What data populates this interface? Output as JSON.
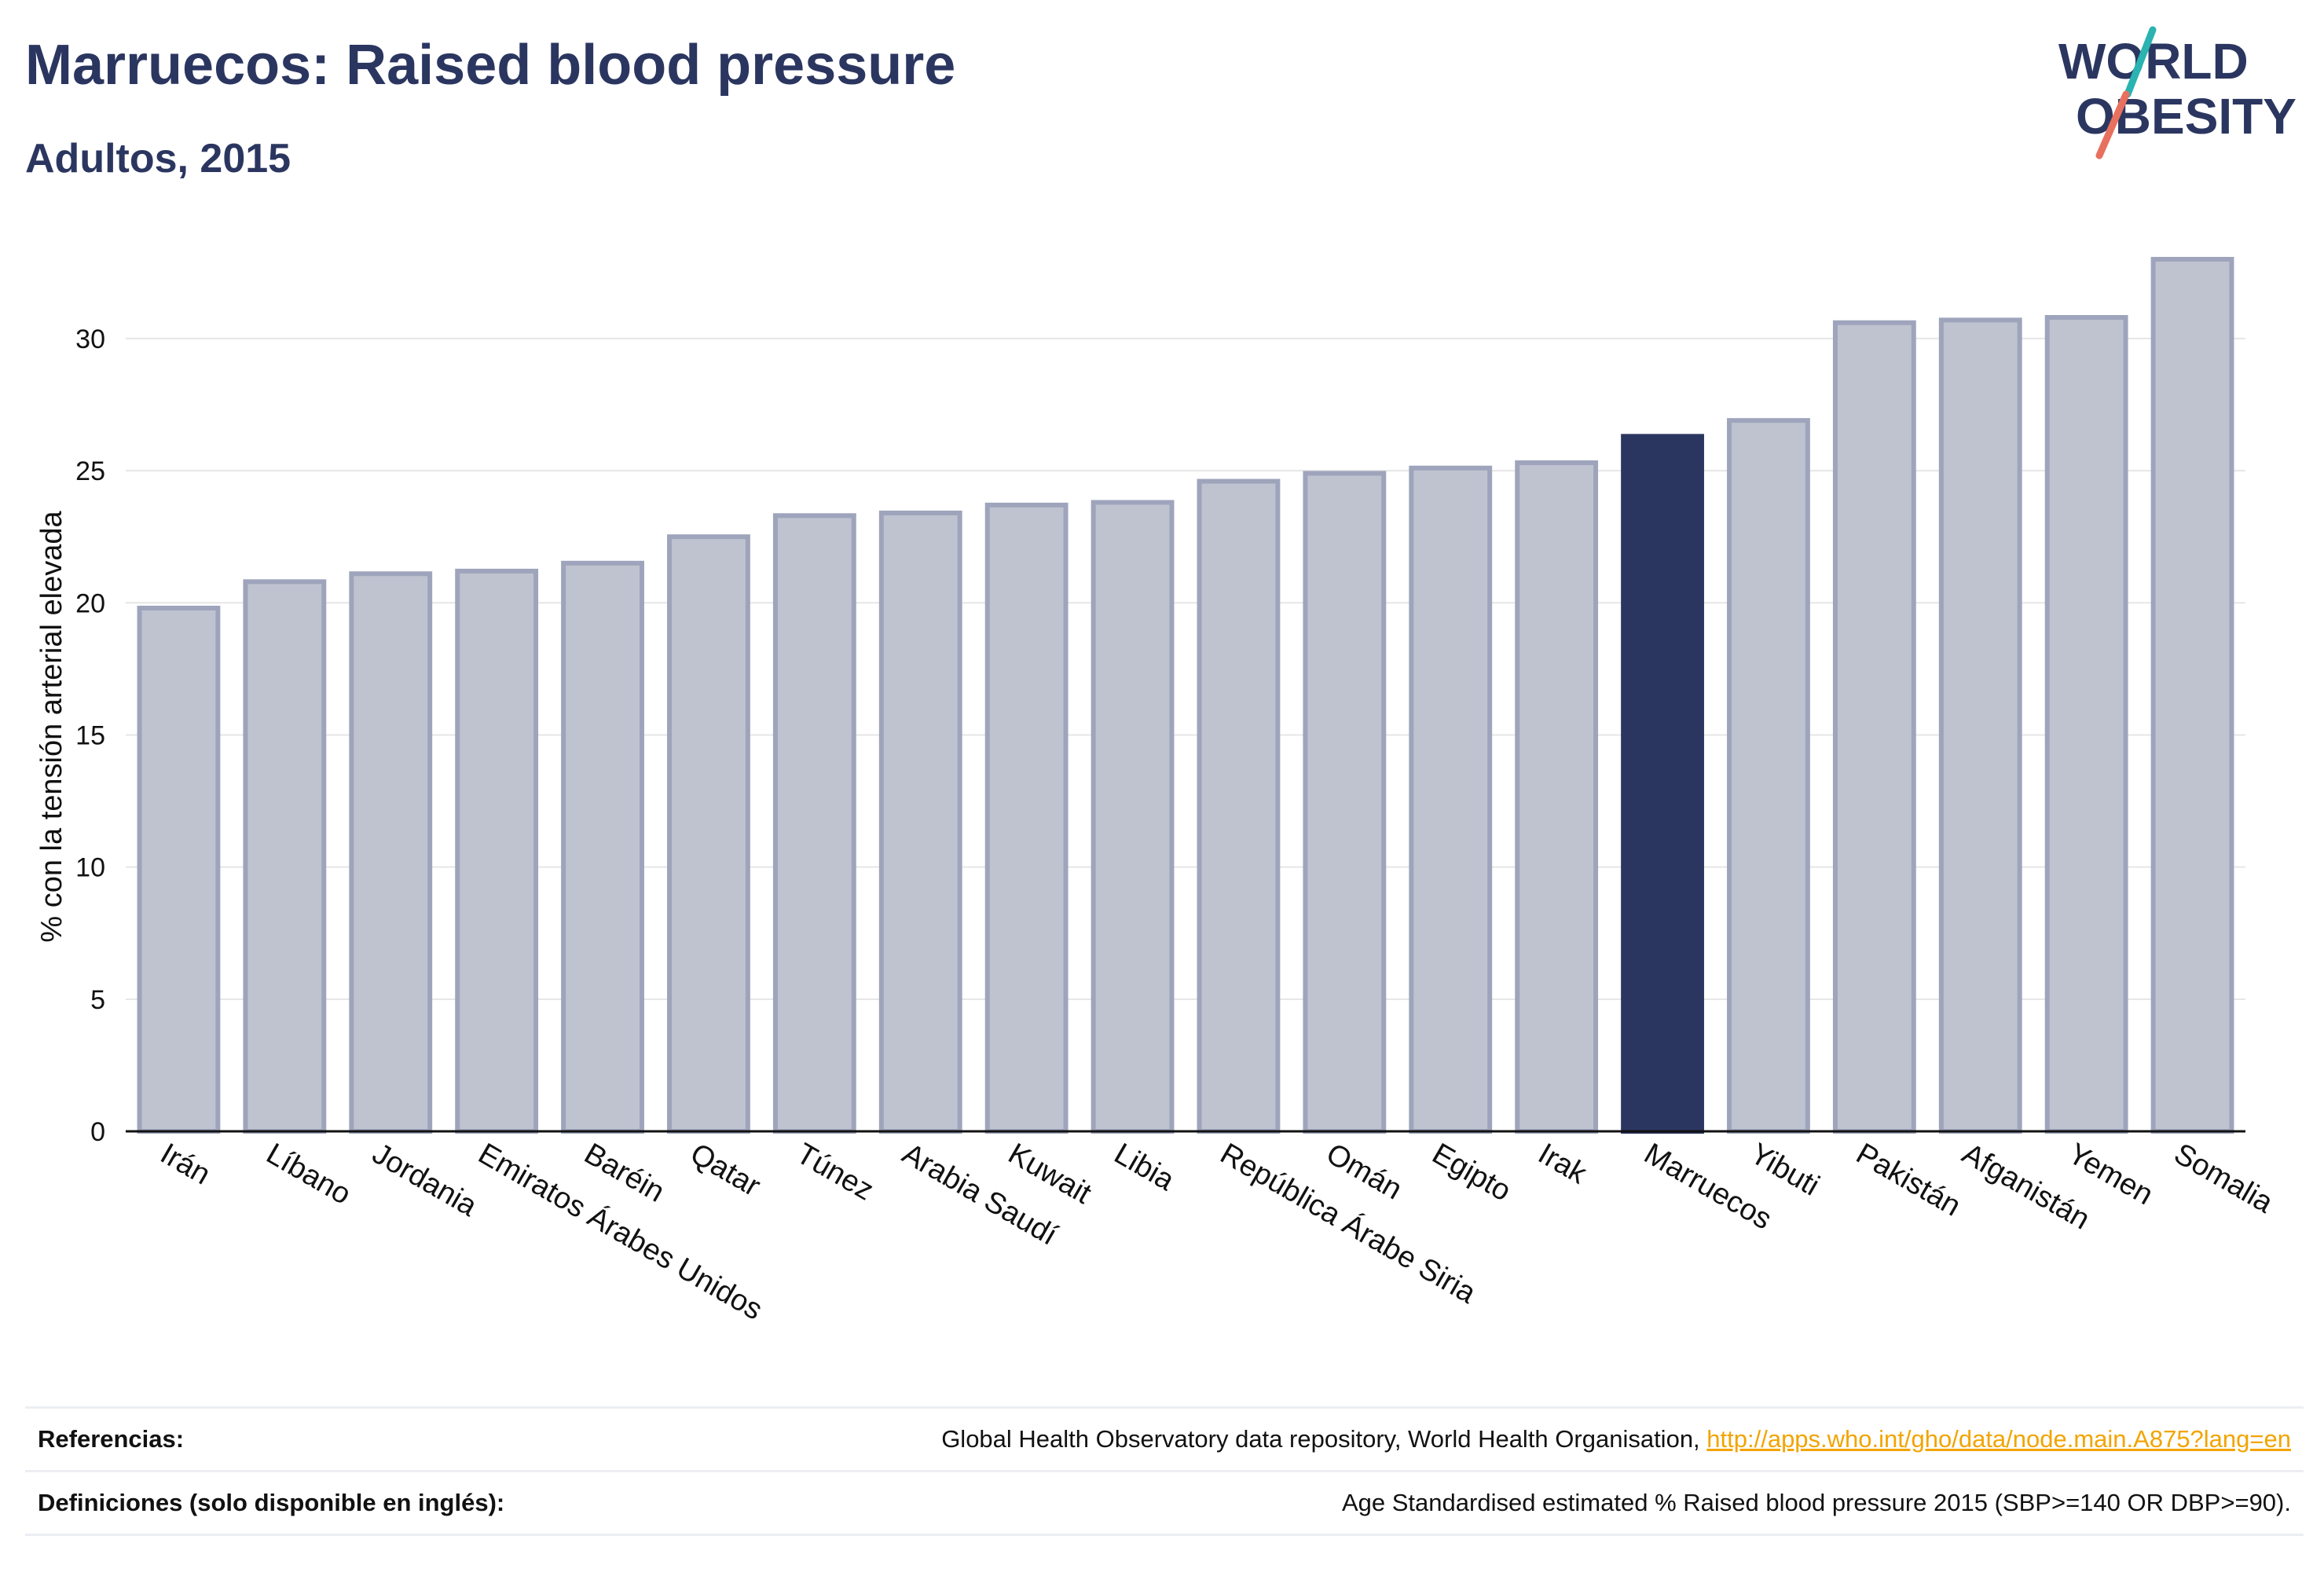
{
  "header": {
    "title": "Marruecos: Raised blood pressure",
    "subtitle": "Adultos, 2015"
  },
  "logo": {
    "line1": "WORLD",
    "line2": "OBESITY"
  },
  "colors": {
    "highlight": "#2b3660",
    "bar_fill": "#bfc3d0",
    "bar_stroke": "#9ea4bb",
    "text": "#2b3660",
    "gridline": "#e6e6e6",
    "link": "#f2a400",
    "logo_teal": "#2ab3b0",
    "logo_coral": "#e8705f"
  },
  "chart_data": {
    "type": "bar",
    "ylabel": "% con la tensión arterial elevada",
    "xlabel": "",
    "ylim": [
      0,
      33
    ],
    "yticks": [
      0,
      5,
      10,
      15,
      20,
      25,
      30
    ],
    "grid": true,
    "highlight_category": "Marruecos",
    "categories": [
      "Irán",
      "Líbano",
      "Jordania",
      "Emiratos Árabes Unidos",
      "Baréin",
      "Qatar",
      "Túnez",
      "Arabia Saudí",
      "Kuwait",
      "Libia",
      "República Árabe Siria",
      "Omán",
      "Egipto",
      "Irak",
      "Marruecos",
      "Yibuti",
      "Pakistán",
      "Afganistán",
      "Yemen",
      "Somalia"
    ],
    "values": [
      19.8,
      20.8,
      21.1,
      21.2,
      21.5,
      22.5,
      23.3,
      23.4,
      23.7,
      23.8,
      24.6,
      24.9,
      25.1,
      25.3,
      26.3,
      26.9,
      30.6,
      30.7,
      30.8,
      33.0
    ]
  },
  "footer": {
    "references_label": "Referencias:",
    "references_text": "Global Health Observatory data repository, World Health Organisation, ",
    "references_link": "http://apps.who.int/gho/data/node.main.A875?lang=en",
    "definitions_label": "Definiciones (solo disponible en inglés):",
    "definitions_text": "Age Standardised estimated % Raised blood pressure 2015 (SBP>=140 OR DBP>=90)."
  }
}
